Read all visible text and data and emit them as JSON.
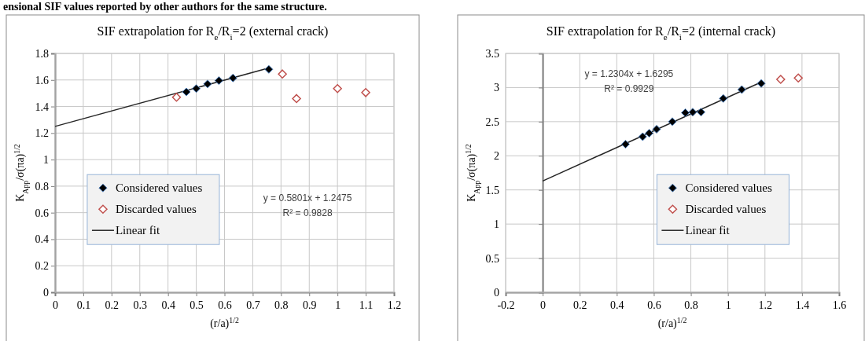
{
  "chart_data": [
    {
      "type": "scatter",
      "title": "SIF extrapolation  for R$_{e}$/R$_{i}$=2 (external crack)",
      "xlabel": "(r/a)$^{1/2}$",
      "ylabel": "K$_{App}$/σ(πa)$^{1/2}$",
      "xlim": [
        0,
        1.2
      ],
      "xticks": [
        0,
        0.1,
        0.2,
        0.3,
        0.4,
        0.5,
        0.6,
        0.7,
        0.8,
        0.9,
        1,
        1.1,
        1.2
      ],
      "ylim": [
        0,
        1.8
      ],
      "yticks": [
        0,
        0.2,
        0.4,
        0.6,
        0.8,
        1,
        1.2,
        1.4,
        1.6,
        1.8
      ],
      "grid": true,
      "legend": "bottom left",
      "series": [
        {
          "name": "Considered values",
          "type": "scatter",
          "marker": "diamond",
          "color": "#000000",
          "x": [
            0.465,
            0.5,
            0.54,
            0.58,
            0.63,
            0.757
          ],
          "values": [
            1.51,
            1.535,
            1.57,
            1.595,
            1.615,
            1.68
          ]
        },
        {
          "name": "Discarded values",
          "type": "scatter",
          "marker": "diamond",
          "color": "#c0504d",
          "x": [
            0.43,
            0.805,
            0.855,
            1.0,
            1.1
          ],
          "values": [
            1.47,
            1.645,
            1.46,
            1.535,
            1.505
          ]
        },
        {
          "name": "Linear fit",
          "type": "line",
          "marker": "none",
          "line_style": "solid",
          "color": "#262626",
          "x": [
            0,
            0.757
          ],
          "values": [
            1.25,
            1.69
          ]
        }
      ],
      "annotations": [
        "y = 0.5801x + 1.2475",
        "R² = 0.9828",
        "ensional SIF values reported by other authors for the same structure."
      ]
    },
    {
      "type": "scatter",
      "title": "SIF extrapolation  for R$_{e}$/R$_{i}$=2 (internal crack)",
      "xlabel": "(r/a)$^{1/2}$",
      "ylabel": "K$_{App}$/σ(πa)$^{1/2}$",
      "xlim": [
        -0.2,
        1.6
      ],
      "xticks": [
        -0.2,
        0,
        0.2,
        0.4,
        0.6,
        0.8,
        1,
        1.2,
        1.4,
        1.6
      ],
      "ylim": [
        0,
        3.5
      ],
      "yticks": [
        0,
        0.5,
        1,
        1.5,
        2,
        2.5,
        3,
        3.5
      ],
      "grid": true,
      "legend": "bottom right",
      "series": [
        {
          "name": "Considered values",
          "type": "scatter",
          "marker": "diamond",
          "color": "#000000",
          "x": [
            0.447,
            0.54,
            0.575,
            0.615,
            0.7,
            0.77,
            0.81,
            0.855,
            0.975,
            1.075,
            1.18
          ],
          "values": [
            2.17,
            2.28,
            2.33,
            2.39,
            2.5,
            2.63,
            2.64,
            2.64,
            2.84,
            2.97,
            3.06
          ]
        },
        {
          "name": "Discarded values",
          "type": "scatter",
          "marker": "diamond",
          "color": "#c0504d",
          "x": [
            1.285,
            1.38
          ],
          "values": [
            3.12,
            3.14
          ]
        },
        {
          "name": "Linear fit",
          "type": "line",
          "marker": "none",
          "line_style": "solid",
          "color": "#262626",
          "x": [
            0,
            1.18
          ],
          "values": [
            1.63,
            3.08
          ]
        }
      ],
      "annotations": [
        "y = 1.2304x + 1.6295",
        "R² = 0.9929"
      ]
    }
  ]
}
